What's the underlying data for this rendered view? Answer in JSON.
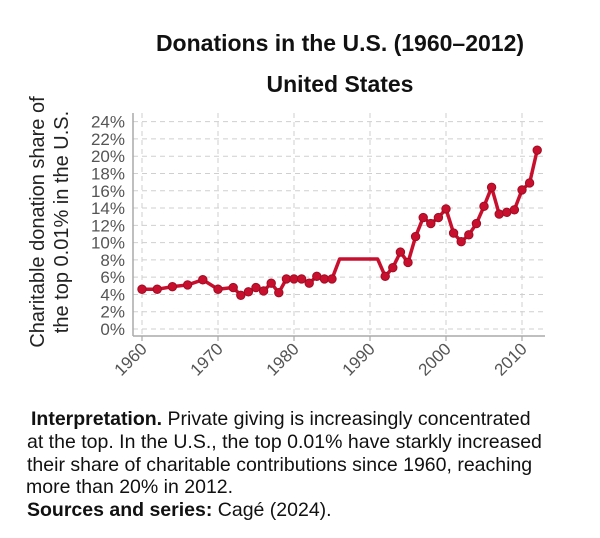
{
  "chart_data": {
    "type": "line",
    "title": "Donations in the U.S. (1960–2012)",
    "subtitle": "United States",
    "xlabel": "",
    "ylabel": "Charitable donation share of the top 0.01% in the U.S.",
    "ylabel_lines": [
      "Charitable donation share of",
      "the top 0.01% in the U.S."
    ],
    "xlim": [
      1959,
      2013
    ],
    "ylim": [
      0,
      24
    ],
    "x_ticks": [
      1960,
      1970,
      1980,
      1990,
      2000,
      2010
    ],
    "y_ticks": [
      "0%",
      "2%",
      "4%",
      "6%",
      "8%",
      "10%",
      "12%",
      "14%",
      "16%",
      "18%",
      "20%",
      "22%",
      "24%"
    ],
    "grid": true,
    "color": "#c8102e",
    "series": [
      {
        "x": [
          1960,
          1962,
          1964,
          1966,
          1968,
          1970,
          1972,
          1973,
          1974,
          1975,
          1976,
          1977,
          1978,
          1979,
          1980,
          1981,
          1982,
          1983,
          1984,
          1985,
          1986,
          1991,
          1992,
          1993,
          1994,
          1995,
          1996,
          1997,
          1998,
          1999,
          2000,
          2001,
          2002,
          2003,
          2004,
          2005,
          2006,
          2007,
          2008,
          2009,
          2010,
          2011,
          2012
        ],
        "y": [
          4.6,
          4.6,
          4.9,
          5.1,
          5.7,
          4.6,
          4.8,
          3.9,
          4.3,
          4.8,
          4.4,
          5.3,
          4.2,
          5.8,
          5.8,
          5.8,
          5.3,
          6.1,
          5.8,
          5.8,
          8.1,
          8.1,
          6.1,
          7.1,
          8.9,
          7.7,
          10.7,
          12.9,
          12.2,
          12.9,
          13.9,
          11.1,
          10.1,
          10.9,
          12.2,
          14.2,
          16.4,
          13.3,
          13.5,
          13.8,
          16.1,
          16.9,
          20.7
        ]
      }
    ]
  },
  "notes": {
    "interpretation_label": "Interpretation.",
    "interpretation_lines": [
      " Private giving is increasingly concentrated",
      "at the top. In the U.S., the top 0.01% have starkly increased",
      "their share of charitable contributions since 1960, reaching",
      "more than 20% in 2012."
    ],
    "sources_label": "Sources and series:",
    "sources_text": " Cagé (2024)."
  }
}
